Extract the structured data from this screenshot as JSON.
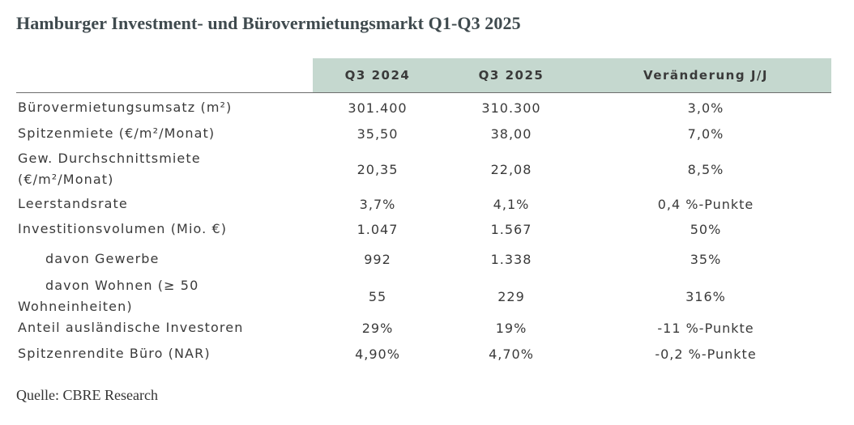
{
  "title": "Hamburger Investment- und Bürovermietungsmarkt Q1-Q3 2025",
  "source": "Quelle: CBRE Research",
  "colors": {
    "header_band": "#c5d8cf",
    "text": "#3a3a3a",
    "title": "#3f4a4e"
  },
  "table": {
    "headers": [
      "Q3 2024",
      "Q3 2025",
      "Veränderung J/J"
    ],
    "rows": [
      {
        "label": "Bürovermietungsumsatz (m²)",
        "q3_2024": "301.400",
        "q3_2025": "310.300",
        "change": "3,0%"
      },
      {
        "label": "Spitzenmiete (€/m²/Monat)",
        "q3_2024": "35,50",
        "q3_2025": "38,00",
        "change": "7,0%"
      },
      {
        "label_line1": "Gew. Durchschnittsmiete",
        "label_line2": "(€/m²/Monat)",
        "q3_2024": "20,35",
        "q3_2025": "22,08",
        "change": "8,5%"
      },
      {
        "label": "Leerstandsrate",
        "q3_2024": "3,7%",
        "q3_2025": "4,1%",
        "change": "0,4 %-Punkte"
      },
      {
        "label": "Investitionsvolumen (Mio. €)",
        "q3_2024": "1.047",
        "q3_2025": "1.567",
        "change": "50%"
      },
      {
        "label": "davon Gewerbe",
        "q3_2024": "992",
        "q3_2025": "1.338",
        "change": "35%"
      },
      {
        "label_line1": "davon Wohnen (≥ 50",
        "label_line2": "Wohneinheiten)",
        "q3_2024": "55",
        "q3_2025": "229",
        "change": "316%"
      },
      {
        "label": "Anteil ausländische Investoren",
        "q3_2024": "29%",
        "q3_2025": "19%",
        "change": "-11 %-Punkte"
      },
      {
        "label": "Spitzenrendite Büro (NAR)",
        "q3_2024": "4,90%",
        "q3_2025": "4,70%",
        "change": "-0,2 %-Punkte"
      }
    ]
  }
}
